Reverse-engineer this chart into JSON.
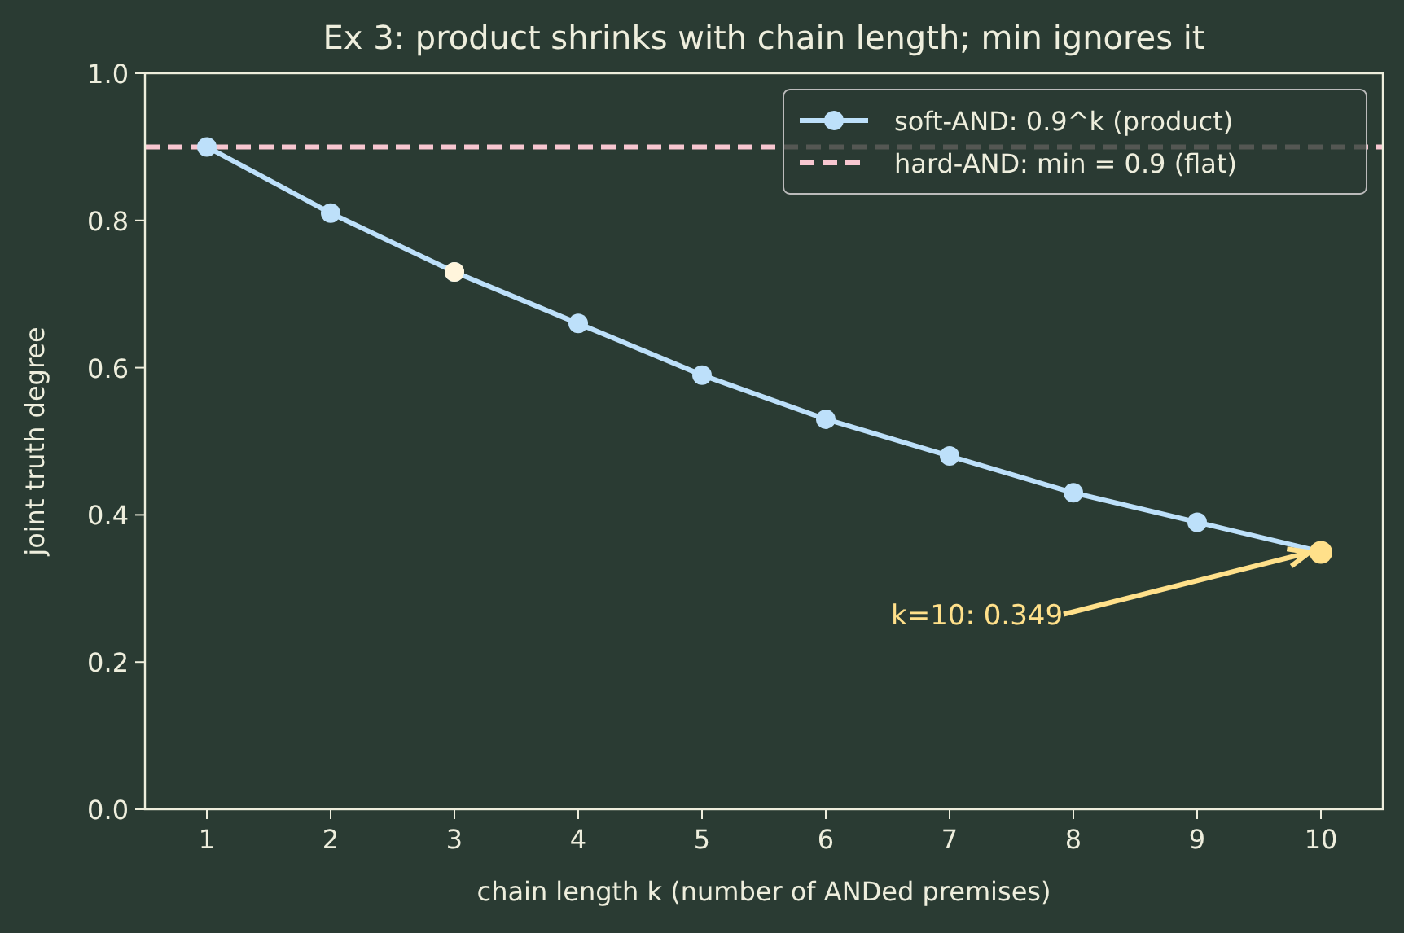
{
  "chart_data": {
    "type": "line",
    "title": "Ex 3: product shrinks with chain length; min ignores it",
    "xlabel": "chain length  k  (number of ANDed premises)",
    "ylabel": "joint truth degree",
    "x": [
      1,
      2,
      3,
      4,
      5,
      6,
      7,
      8,
      9,
      10
    ],
    "series": [
      {
        "name": "soft-AND: 0.9^k (product)",
        "color": "#bde0fa",
        "values": [
          0.9,
          0.81,
          0.73,
          0.66,
          0.59,
          0.53,
          0.48,
          0.43,
          0.39,
          0.35
        ],
        "marker": "circle"
      },
      {
        "type": "scatter",
        "color": "#fff5dc",
        "x": [
          3
        ],
        "values": [
          0.73
        ]
      },
      {
        "type": "scatter",
        "color": "#ffe08a",
        "x": [
          10
        ],
        "values": [
          0.349
        ]
      }
    ],
    "xlim": [
      0.5,
      10.5
    ],
    "xticks": [
      1,
      2,
      3,
      4,
      5,
      6,
      7,
      8,
      9,
      10
    ],
    "ylim": [
      0,
      1
    ],
    "yticks": [
      {
        "value": 0,
        "label": "0.0"
      },
      0.2,
      0.4,
      0.6,
      0.8,
      {
        "value": 1,
        "label": "1.0"
      }
    ],
    "ref_lines": [
      {
        "axis": "y",
        "value": 0.9,
        "label": "hard-AND: min = 0.9 (flat)",
        "color": "#f7c6d0",
        "line_style": "dashed"
      }
    ],
    "annotations": [
      {
        "text": "k=10: 0.349",
        "x": 10,
        "y": 0.349
      }
    ],
    "legend": "top right",
    "grid": false
  }
}
